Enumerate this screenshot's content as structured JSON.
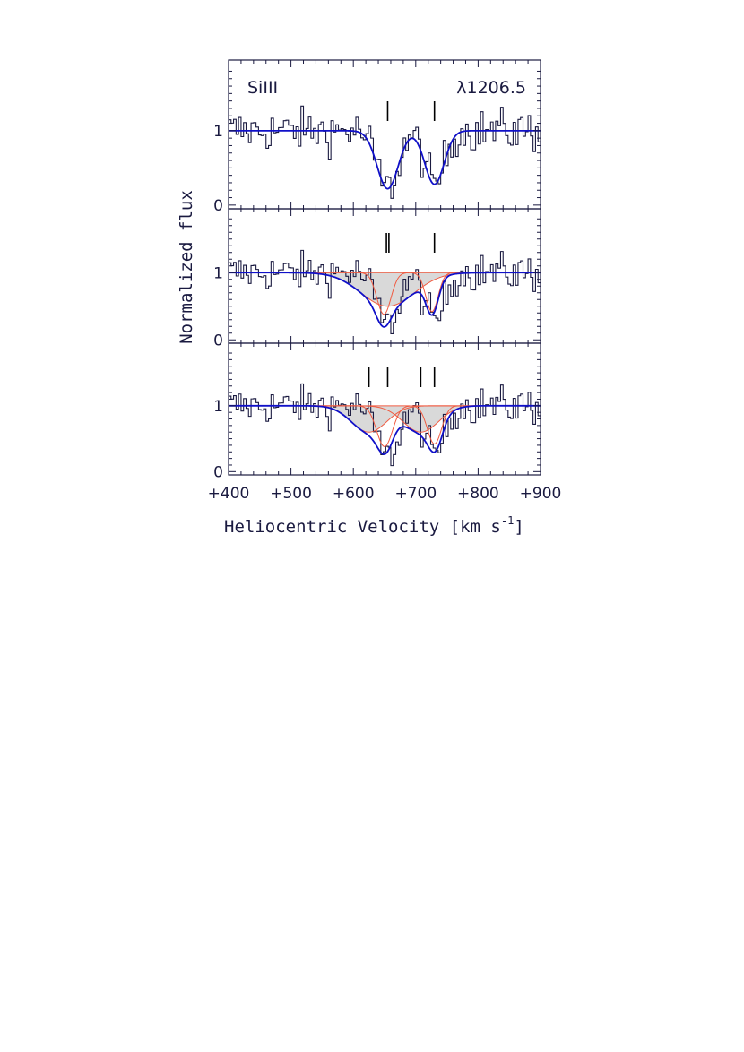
{
  "chart_data": {
    "type": "line",
    "xlabel_main": "Heliocentric Velocity [km s",
    "xlabel_sup": "-1",
    "xlabel_close": "]",
    "ylabel": "Normalized flux",
    "xlim": [
      400,
      900
    ],
    "ylim": [
      -0.05,
      1.95
    ],
    "x_ticks": [
      400,
      500,
      600,
      700,
      800,
      900
    ],
    "x_tick_labels": [
      "+400",
      "+500",
      "+600",
      "+700",
      "+800",
      "+900"
    ],
    "y_ticks": [
      0,
      1
    ],
    "y_tick_labels": [
      "0",
      "1"
    ],
    "ion": "SiIII",
    "line_label": "λ1206.5",
    "colors": {
      "data": "#1a1a40",
      "model": "#1010c8",
      "component": "#f05a40",
      "shade": "#d9d9d9"
    },
    "panels": [
      {
        "name": "panel-1",
        "component_markers": [
          655,
          730
        ],
        "components": [
          {
            "v": 655,
            "depth": 0.78,
            "b": 24,
            "shaded": false
          },
          {
            "v": 730,
            "depth": 0.72,
            "b": 22,
            "shaded": false
          }
        ],
        "show_components": false
      },
      {
        "name": "panel-2",
        "component_markers": [
          653,
          657,
          730
        ],
        "components": [
          {
            "v": 655,
            "depth": 0.5,
            "b": 60,
            "shaded": true
          },
          {
            "v": 649,
            "depth": 0.62,
            "b": 16,
            "shaded": false
          },
          {
            "v": 726,
            "depth": 0.58,
            "b": 14,
            "shaded": false
          }
        ],
        "show_components": true
      },
      {
        "name": "panel-3",
        "component_markers": [
          625,
          655,
          708,
          730
        ],
        "components": [
          {
            "v": 625,
            "depth": 0.4,
            "b": 40,
            "shaded": true
          },
          {
            "v": 650,
            "depth": 0.62,
            "b": 18,
            "shaded": false
          },
          {
            "v": 708,
            "depth": 0.4,
            "b": 40,
            "shaded": true
          },
          {
            "v": 730,
            "depth": 0.58,
            "b": 16,
            "shaded": false
          }
        ],
        "show_components": true
      }
    ]
  }
}
